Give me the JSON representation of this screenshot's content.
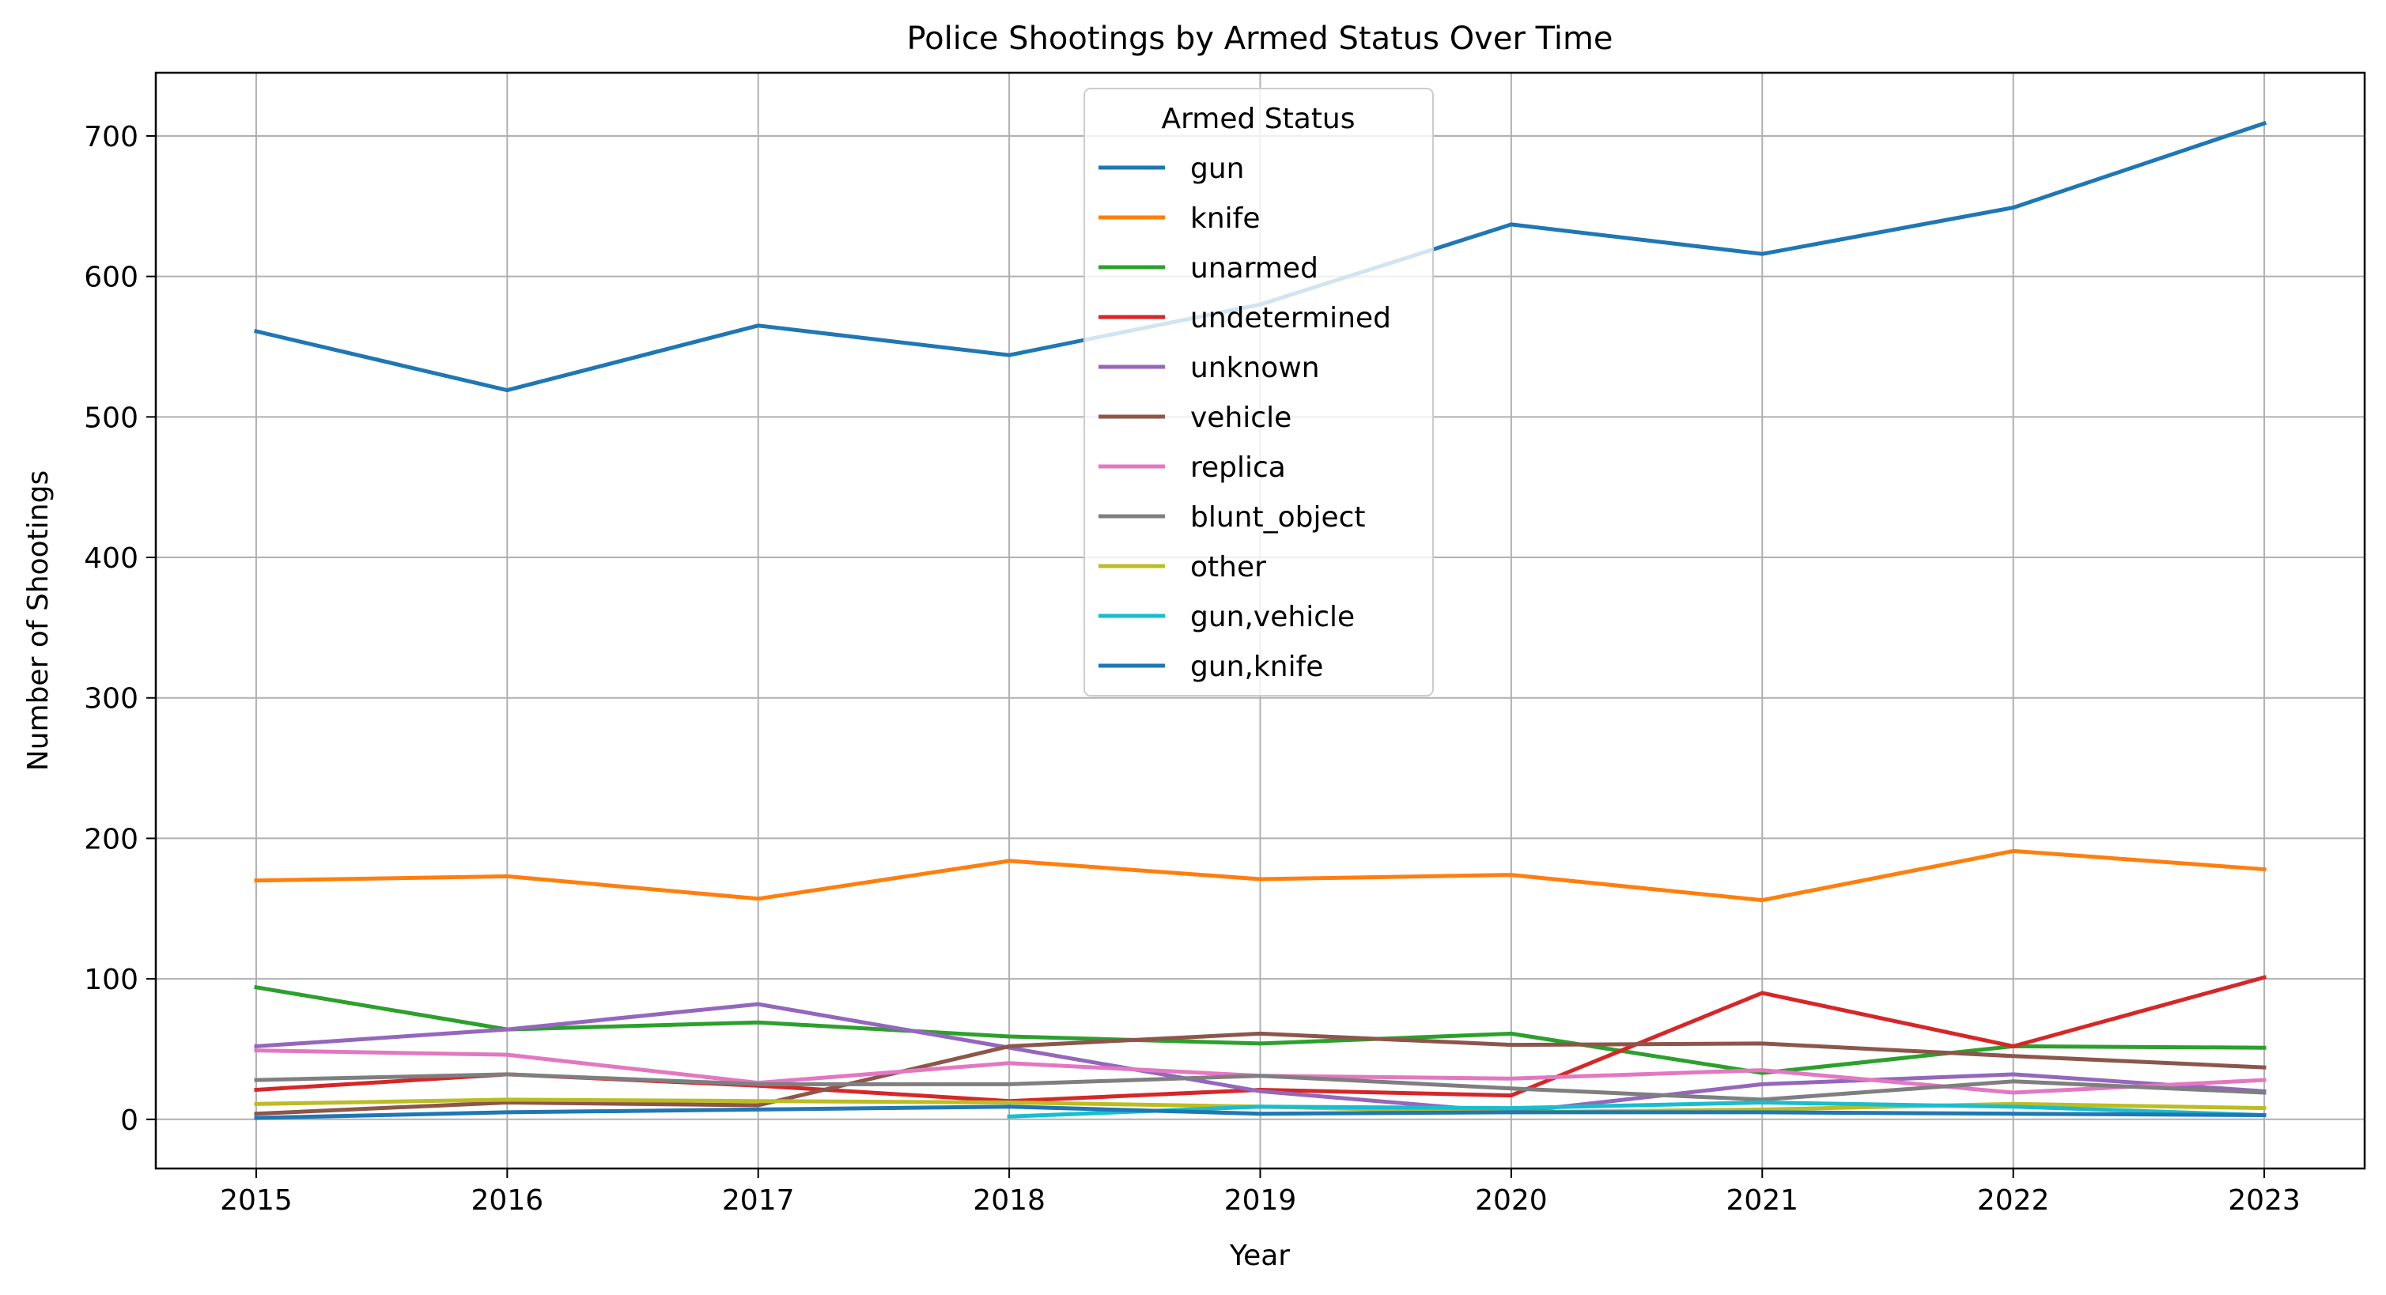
{
  "chart_data": {
    "type": "line",
    "title": "Police Shootings by Armed Status Over Time",
    "xlabel": "Year",
    "ylabel": "Number of Shootings",
    "x": [
      2015,
      2016,
      2017,
      2018,
      2019,
      2020,
      2021,
      2022,
      2023
    ],
    "xlim": [
      2014.6,
      2023.4
    ],
    "ylim": [
      -35,
      745
    ],
    "yticks": [
      0,
      100,
      200,
      300,
      400,
      500,
      600,
      700
    ],
    "grid": true,
    "legend": {
      "title": "Armed Status",
      "placement": "upper center"
    },
    "series": [
      {
        "name": "gun",
        "color": "#1f77b4",
        "values": [
          561,
          519,
          565,
          544,
          580,
          637,
          616,
          649,
          709
        ]
      },
      {
        "name": "knife",
        "color": "#ff7f0e",
        "values": [
          170,
          173,
          157,
          184,
          171,
          174,
          156,
          191,
          178
        ]
      },
      {
        "name": "unarmed",
        "color": "#2ca02c",
        "values": [
          94,
          64,
          69,
          59,
          54,
          61,
          33,
          52,
          51
        ]
      },
      {
        "name": "undetermined",
        "color": "#d62728",
        "values": [
          21,
          32,
          24,
          13,
          21,
          17,
          90,
          52,
          101
        ]
      },
      {
        "name": "unknown",
        "color": "#9467bd",
        "values": [
          52,
          64,
          82,
          51,
          20,
          5,
          25,
          32,
          20
        ]
      },
      {
        "name": "vehicle",
        "color": "#8c564b",
        "values": [
          4,
          12,
          10,
          52,
          61,
          53,
          54,
          45,
          37
        ]
      },
      {
        "name": "replica",
        "color": "#e377c2",
        "values": [
          49,
          46,
          26,
          40,
          31,
          29,
          35,
          19,
          28
        ]
      },
      {
        "name": "blunt_object",
        "color": "#7f7f7f",
        "values": [
          28,
          32,
          25,
          25,
          31,
          22,
          14,
          27,
          19
        ]
      },
      {
        "name": "other",
        "color": "#bcbd22",
        "values": [
          11,
          14,
          13,
          12,
          9,
          5,
          7,
          11,
          8
        ]
      },
      {
        "name": "gun,vehicle",
        "color": "#17becf",
        "values": [
          null,
          null,
          null,
          2,
          9,
          8,
          12,
          9,
          3
        ]
      },
      {
        "name": "gun,knife",
        "color": "#1f77b4",
        "values": [
          1,
          5,
          7,
          9,
          4,
          5,
          5,
          4,
          3
        ]
      }
    ]
  }
}
